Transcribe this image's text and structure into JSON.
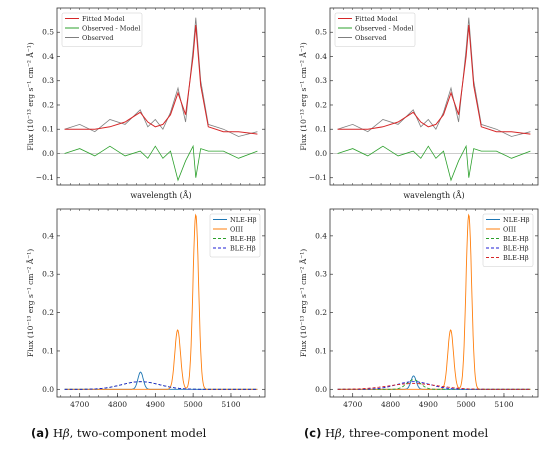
{
  "captions": [
    {
      "tag": "(a)",
      "ion": "H",
      "greek": "β",
      "rest": ", two-component model"
    },
    {
      "tag": "(c)",
      "ion": "H",
      "greek": "β",
      "rest": ", three-component model"
    }
  ],
  "colors": {
    "fitted": "#d62728",
    "residual": "#2ca02c",
    "observed": "#7f7f7f",
    "nle": "#1f77b4",
    "oiii": "#ff7f0e",
    "ble1": "#2ca02c",
    "ble2": "#1f1fd6",
    "ble3": "#d62728"
  },
  "chart_data": [
    {
      "panel": "a-top",
      "type": "line",
      "xlabel": "wavelength (Å)",
      "ylabel": "Flux (10⁻¹³ erg s⁻¹ cm⁻² Å⁻¹)",
      "ylim": [
        -0.13,
        0.6
      ],
      "yticks": [
        "−0.1",
        "0.0",
        "0.1",
        "0.2",
        "0.3",
        "0.4",
        "0.5"
      ],
      "legend": {
        "position": "top-left",
        "entries": [
          "Fitted Model",
          "Observed - Model",
          "Observed"
        ]
      },
      "x": [
        4660,
        4700,
        4740,
        4780,
        4820,
        4860,
        4880,
        4900,
        4920,
        4940,
        4960,
        4980,
        5000,
        5007,
        5020,
        5040,
        5080,
        5120,
        5170
      ],
      "series": [
        {
          "name": "Fitted Model",
          "values": [
            0.1,
            0.1,
            0.1,
            0.11,
            0.13,
            0.17,
            0.13,
            0.11,
            0.12,
            0.16,
            0.25,
            0.16,
            0.4,
            0.53,
            0.28,
            0.11,
            0.09,
            0.09,
            0.08
          ]
        },
        {
          "name": "Observed",
          "values": [
            0.1,
            0.12,
            0.09,
            0.14,
            0.12,
            0.18,
            0.11,
            0.14,
            0.1,
            0.17,
            0.27,
            0.13,
            0.43,
            0.56,
            0.3,
            0.12,
            0.1,
            0.07,
            0.09
          ]
        },
        {
          "name": "Observed - Model",
          "values": [
            0.0,
            0.02,
            -0.01,
            0.03,
            -0.01,
            0.01,
            -0.02,
            0.03,
            -0.02,
            0.01,
            -0.11,
            -0.03,
            0.03,
            -0.1,
            0.02,
            0.01,
            0.01,
            -0.02,
            0.01
          ]
        }
      ]
    },
    {
      "panel": "c-top",
      "type": "line",
      "xlabel": "wavelength (Å)",
      "ylabel": "Flux (10⁻¹³ erg s⁻¹ cm⁻² Å⁻¹)",
      "ylim": [
        -0.13,
        0.6
      ],
      "yticks": [
        "−0.1",
        "0.0",
        "0.1",
        "0.2",
        "0.3",
        "0.4",
        "0.5"
      ],
      "legend": {
        "position": "top-left",
        "entries": [
          "Fitted Model",
          "Observed - Model",
          "Observed"
        ]
      },
      "x": [
        4660,
        4700,
        4740,
        4780,
        4820,
        4860,
        4880,
        4900,
        4920,
        4940,
        4960,
        4980,
        5000,
        5007,
        5020,
        5040,
        5080,
        5120,
        5170
      ],
      "series": [
        {
          "name": "Fitted Model",
          "values": [
            0.1,
            0.1,
            0.1,
            0.11,
            0.13,
            0.17,
            0.13,
            0.11,
            0.12,
            0.16,
            0.25,
            0.16,
            0.4,
            0.53,
            0.28,
            0.11,
            0.09,
            0.09,
            0.08
          ]
        },
        {
          "name": "Observed",
          "values": [
            0.1,
            0.12,
            0.09,
            0.14,
            0.12,
            0.18,
            0.11,
            0.14,
            0.1,
            0.17,
            0.27,
            0.13,
            0.43,
            0.56,
            0.3,
            0.12,
            0.1,
            0.07,
            0.09
          ]
        },
        {
          "name": "Observed - Model",
          "values": [
            0.0,
            0.02,
            -0.01,
            0.03,
            -0.01,
            0.01,
            -0.02,
            0.03,
            -0.02,
            0.01,
            -0.11,
            -0.03,
            0.03,
            -0.1,
            0.02,
            0.01,
            0.01,
            -0.02,
            0.01
          ]
        }
      ]
    },
    {
      "panel": "a-bottom",
      "type": "line",
      "ylabel": "Flux (10⁻¹³ erg s⁻¹ cm⁻² Å⁻¹)",
      "xlim": [
        4640,
        5190
      ],
      "ylim": [
        -0.02,
        0.47
      ],
      "xticks": [
        4700,
        4800,
        4900,
        5000,
        5100
      ],
      "yticks": [
        "0.0",
        "0.1",
        "0.2",
        "0.3",
        "0.4"
      ],
      "legend": {
        "position": "top-right",
        "entries": [
          "NLE-Hβ",
          "OIII",
          "BLE-Hβ",
          "BLE-Hβ"
        ]
      },
      "series": [
        {
          "name": "NLE-Hβ",
          "style": "solid",
          "gaussian": {
            "amp": 0.045,
            "center": 4861,
            "sigma": 7
          }
        },
        {
          "name": "OIII",
          "style": "solid",
          "gaussians": [
            {
              "amp": 0.155,
              "center": 4959,
              "sigma": 7.5
            },
            {
              "amp": 0.455,
              "center": 5007,
              "sigma": 7.5
            }
          ]
        },
        {
          "name": "BLE-Hβ",
          "style": "dashed",
          "gaussian": {
            "amp": 0.02,
            "center": 4861,
            "sigma": 50
          }
        },
        {
          "name": "BLE-Hβ",
          "style": "dashed",
          "gaussian": {
            "amp": 0.02,
            "center": 4861,
            "sigma": 50
          }
        }
      ]
    },
    {
      "panel": "c-bottom",
      "type": "line",
      "ylabel": "Flux (10⁻¹³ erg s⁻¹ cm⁻² Å⁻¹)",
      "xlim": [
        4640,
        5190
      ],
      "ylim": [
        -0.02,
        0.47
      ],
      "xticks": [
        4700,
        4800,
        4900,
        5000,
        5100
      ],
      "yticks": [
        "0.0",
        "0.1",
        "0.2",
        "0.3",
        "0.4"
      ],
      "legend": {
        "position": "top-right",
        "entries": [
          "NLE-Hβ",
          "OIII",
          "BLE-Hβ",
          "BLE-Hβ",
          "BLE-Hβ"
        ]
      },
      "series": [
        {
          "name": "NLE-Hβ",
          "style": "solid",
          "gaussian": {
            "amp": 0.035,
            "center": 4861,
            "sigma": 7
          }
        },
        {
          "name": "OIII",
          "style": "solid",
          "gaussians": [
            {
              "amp": 0.155,
              "center": 4959,
              "sigma": 7.5
            },
            {
              "amp": 0.455,
              "center": 5007,
              "sigma": 7.5
            }
          ]
        },
        {
          "name": "BLE-Hβ",
          "style": "dashed",
          "gaussian": {
            "amp": 0.025,
            "center": 4861,
            "sigma": 18
          }
        },
        {
          "name": "BLE-Hβ",
          "style": "dashed",
          "gaussian": {
            "amp": 0.02,
            "center": 4861,
            "sigma": 45
          }
        },
        {
          "name": "BLE-Hβ",
          "style": "dashed",
          "gaussian": {
            "amp": 0.015,
            "center": 4861,
            "sigma": 65
          }
        }
      ]
    }
  ]
}
